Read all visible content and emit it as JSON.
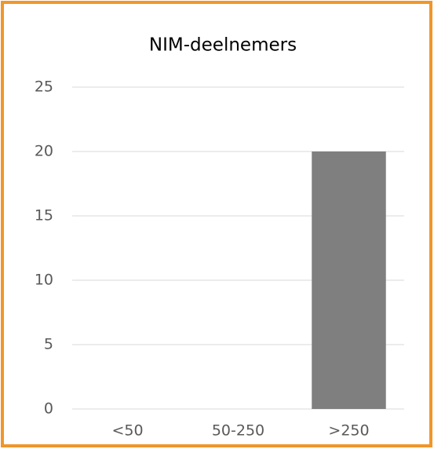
{
  "chart_data": {
    "type": "bar",
    "title": "NIM-deelnemers",
    "categories": [
      "<50",
      "50-250",
      ">250"
    ],
    "values": [
      0,
      0,
      20
    ],
    "color": "#7f7f7f",
    "ylim": [
      0,
      25
    ],
    "yticks": [
      0,
      5,
      10,
      15,
      20,
      25
    ],
    "grid": true
  }
}
